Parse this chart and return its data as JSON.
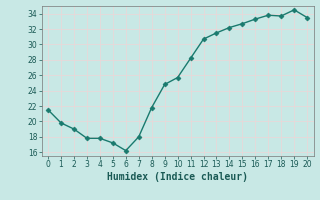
{
  "x": [
    0,
    1,
    2,
    3,
    4,
    5,
    6,
    7,
    8,
    9,
    10,
    11,
    12,
    13,
    14,
    15,
    16,
    17,
    18,
    19,
    20
  ],
  "y": [
    21.5,
    19.8,
    19.0,
    17.8,
    17.8,
    17.2,
    16.2,
    18.0,
    21.8,
    24.8,
    25.7,
    28.2,
    30.7,
    31.5,
    32.2,
    32.7,
    33.3,
    33.8,
    33.7,
    34.5,
    33.5
  ],
  "line_color": "#1a7a6e",
  "marker": "D",
  "marker_size": 2.5,
  "bg_color": "#c8e8e5",
  "grid_color": "#e8d8d8",
  "xlabel": "Humidex (Indice chaleur)",
  "xlim": [
    -0.5,
    20.5
  ],
  "ylim": [
    15.5,
    35.0
  ],
  "yticks": [
    16,
    18,
    20,
    22,
    24,
    26,
    28,
    30,
    32,
    34
  ],
  "xticks": [
    0,
    1,
    2,
    3,
    4,
    5,
    6,
    7,
    8,
    9,
    10,
    11,
    12,
    13,
    14,
    15,
    16,
    17,
    18,
    19,
    20
  ],
  "tick_fontsize": 5.5,
  "xlabel_fontsize": 7,
  "line_width": 1.0
}
